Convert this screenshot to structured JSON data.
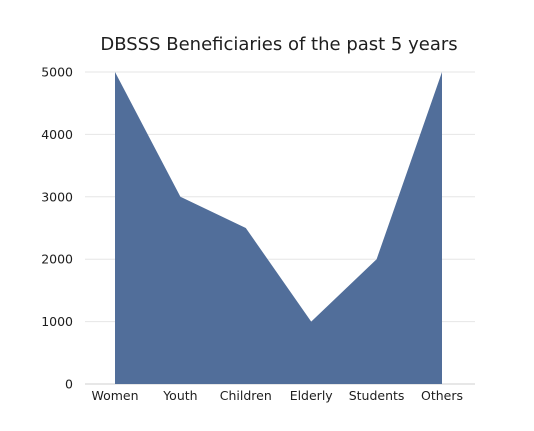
{
  "chart_data": {
    "type": "area",
    "title": "DBSSS Beneficiaries of the past 5 years",
    "xlabel": "",
    "ylabel": "",
    "categories": [
      "Women",
      "Youth",
      "Children",
      "Elderly",
      "Students",
      "Others"
    ],
    "values": [
      5000,
      3000,
      2500,
      1000,
      2000,
      5000
    ],
    "ylim": [
      0,
      5000
    ],
    "yticks": [
      0,
      1000,
      2000,
      3000,
      4000,
      5000
    ],
    "grid": true,
    "legend": "none",
    "colors": {
      "area": "#516e9a",
      "grid": "#e6e6e6",
      "text": "#1e1e1e"
    }
  }
}
